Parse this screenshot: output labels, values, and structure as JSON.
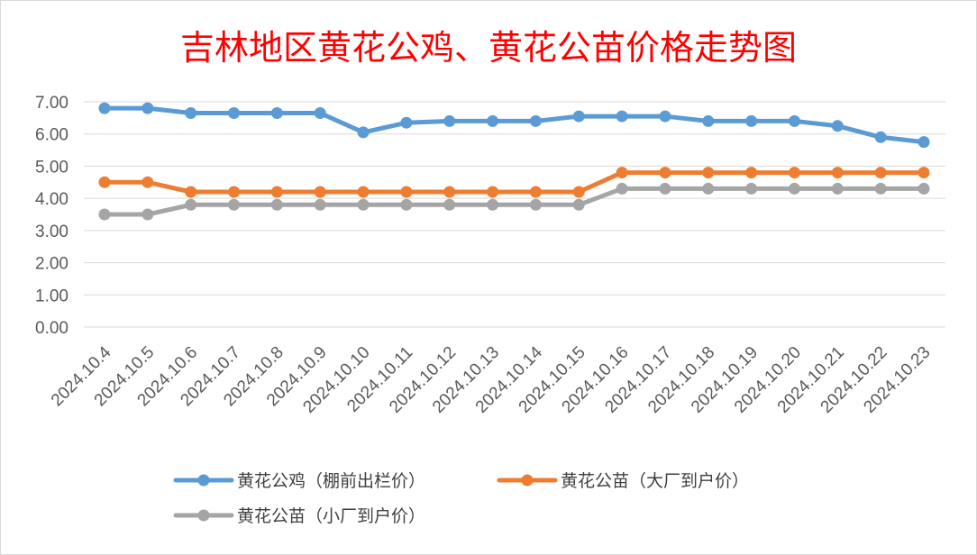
{
  "chart_data": {
    "type": "line",
    "title": "吉林地区黄花公鸡、黄花公苗价格走势图",
    "xlabel": "",
    "ylabel": "",
    "categories": [
      "2024.10.4",
      "2024.10.5",
      "2024.10.6",
      "2024.10.7",
      "2024.10.8",
      "2024.10.9",
      "2024.10.10",
      "2024.10.11",
      "2024.10.12",
      "2024.10.13",
      "2024.10.14",
      "2024.10.15",
      "2024.10.16",
      "2024.10.17",
      "2024.10.18",
      "2024.10.19",
      "2024.10.20",
      "2024.10.21",
      "2024.10.22",
      "2024.10.23"
    ],
    "ylim": [
      0,
      7
    ],
    "yticks": [
      "0.00",
      "1.00",
      "2.00",
      "3.00",
      "4.00",
      "5.00",
      "6.00",
      "7.00"
    ],
    "grid": true,
    "legend_position": "bottom",
    "series": [
      {
        "name": "黄花公鸡（棚前出栏价）",
        "color": "#5b9bd5",
        "values": [
          6.8,
          6.8,
          6.65,
          6.65,
          6.65,
          6.65,
          6.05,
          6.35,
          6.4,
          6.4,
          6.4,
          6.55,
          6.55,
          6.55,
          6.4,
          6.4,
          6.4,
          6.25,
          5.9,
          5.75
        ]
      },
      {
        "name": "黄花公苗（大厂到户价）",
        "color": "#ed7d31",
        "values": [
          4.5,
          4.5,
          4.2,
          4.2,
          4.2,
          4.2,
          4.2,
          4.2,
          4.2,
          4.2,
          4.2,
          4.2,
          4.8,
          4.8,
          4.8,
          4.8,
          4.8,
          4.8,
          4.8,
          4.8
        ]
      },
      {
        "name": "黄花公苗（小厂到户价）",
        "color": "#a5a5a5",
        "values": [
          3.5,
          3.5,
          3.8,
          3.8,
          3.8,
          3.8,
          3.8,
          3.8,
          3.8,
          3.8,
          3.8,
          3.8,
          4.3,
          4.3,
          4.3,
          4.3,
          4.3,
          4.3,
          4.3,
          4.3
        ]
      }
    ]
  }
}
